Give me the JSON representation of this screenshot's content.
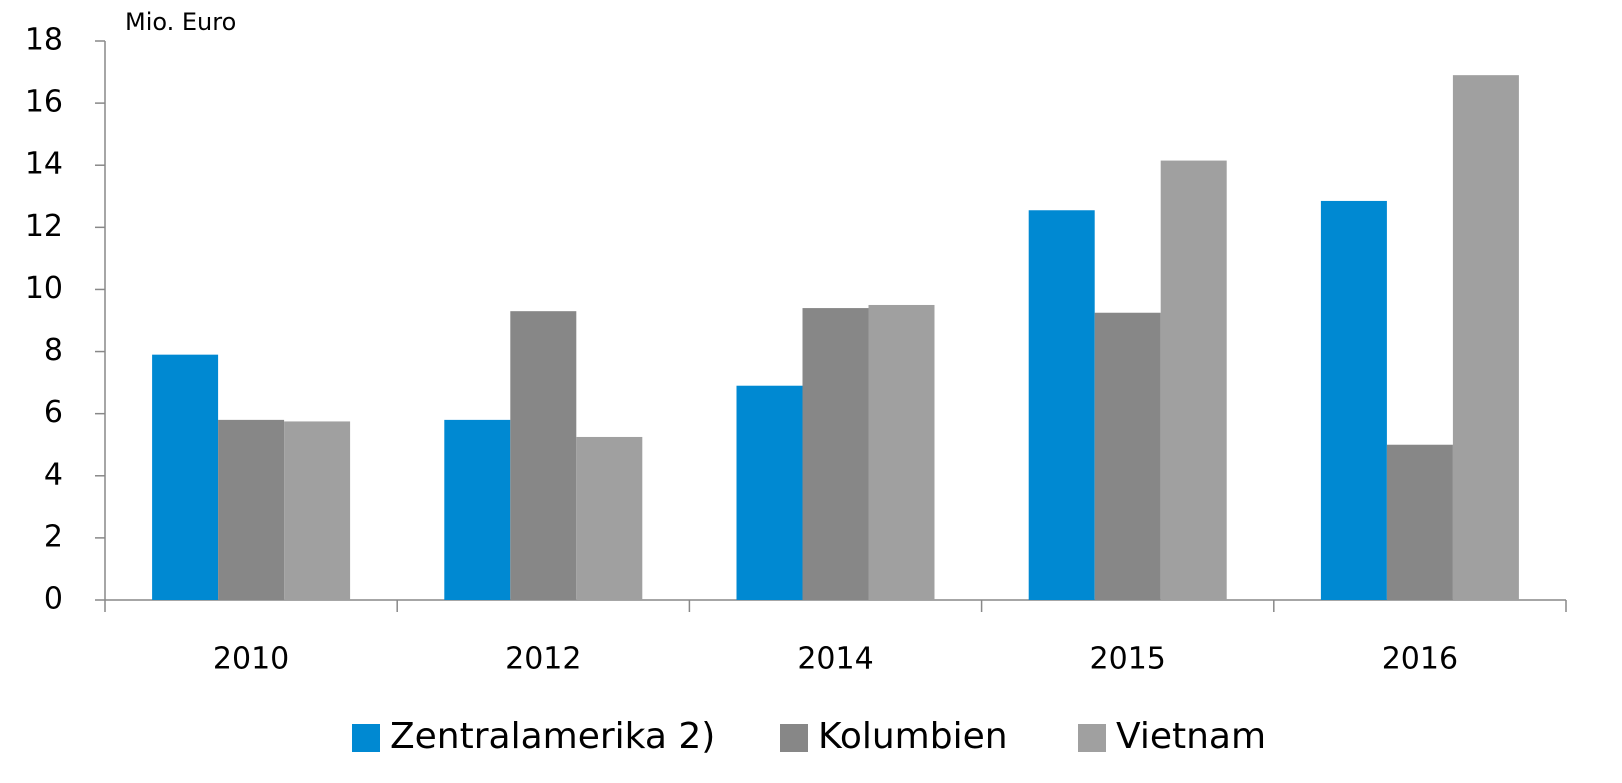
{
  "chart_data": {
    "type": "bar",
    "y_axis_label": "Mio. Euro",
    "categories": [
      "2010",
      "2012",
      "2014",
      "2015",
      "2016"
    ],
    "series": [
      {
        "name": "Zentralamerika 2)",
        "color": "#0089d2",
        "values": [
          7.9,
          5.8,
          6.9,
          12.55,
          12.85
        ]
      },
      {
        "name": "Kolumbien",
        "color": "#878787",
        "values": [
          5.8,
          9.3,
          9.4,
          9.25,
          5.0
        ]
      },
      {
        "name": "Vietnam",
        "color": "#a0a0a0",
        "values": [
          5.75,
          5.25,
          9.5,
          14.15,
          16.9
        ]
      }
    ],
    "ylim": [
      0,
      18
    ],
    "yticks": [
      0,
      2,
      4,
      6,
      8,
      10,
      12,
      14,
      16,
      18
    ],
    "grid": false,
    "legend": "bottom"
  }
}
